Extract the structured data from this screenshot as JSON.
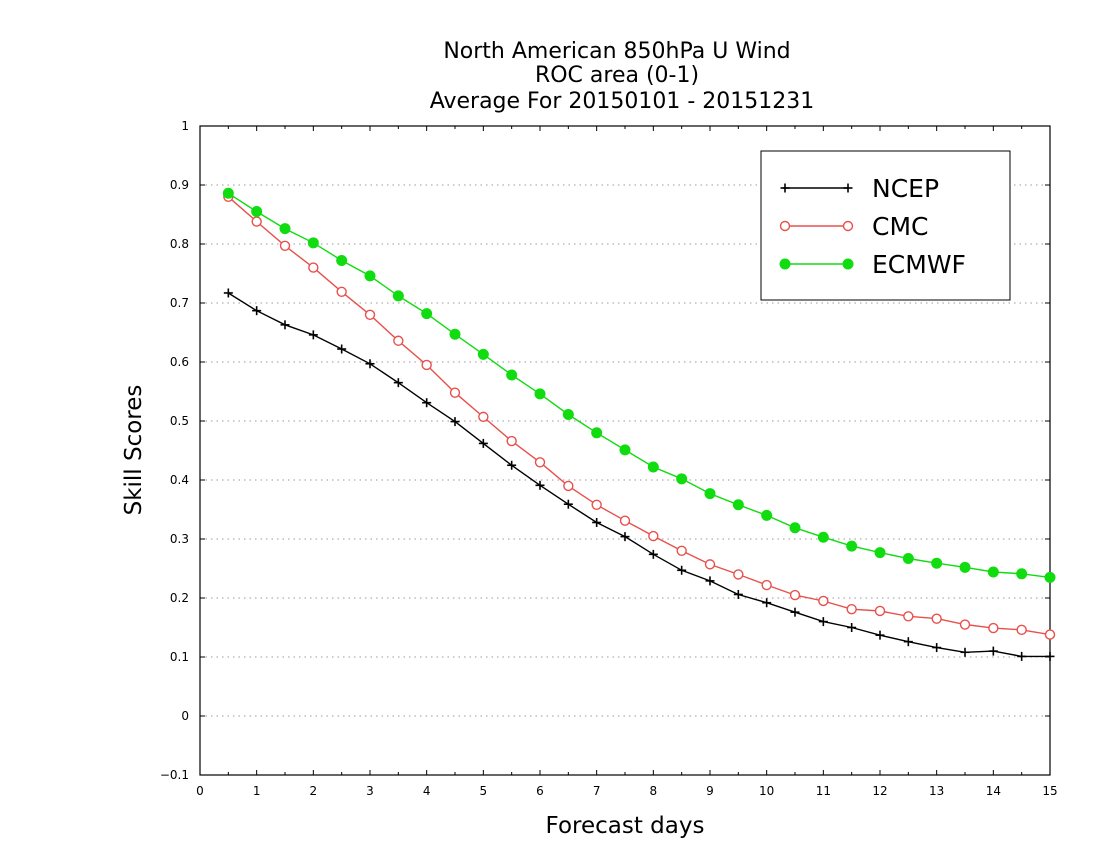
{
  "chart_data": {
    "type": "line",
    "title": [
      "North American 850hPa U Wind",
      "ROC area (0-1)",
      "Average For 20150101 - 20151231"
    ],
    "xlabel": "Forecast days",
    "ylabel": "Skill Scores",
    "xlim": [
      0,
      15
    ],
    "ylim": [
      -0.1,
      1
    ],
    "xticks": [
      "0",
      "1",
      "2",
      "3",
      "4",
      "5",
      "6",
      "7",
      "8",
      "9",
      "10",
      "11",
      "12",
      "13",
      "14",
      "15"
    ],
    "yticks": [
      "−0.1",
      "0",
      "0.1",
      "0.2",
      "0.3",
      "0.4",
      "0.5",
      "0.6",
      "0.7",
      "0.8",
      "0.9",
      "1"
    ],
    "grid": true,
    "legend_position": "top-right",
    "x": [
      0.5,
      1,
      1.5,
      2,
      2.5,
      3,
      3.5,
      4,
      4.5,
      5,
      5.5,
      6,
      6.5,
      7,
      7.5,
      8,
      8.5,
      9,
      9.5,
      10,
      10.5,
      11,
      11.5,
      12,
      12.5,
      13,
      13.5,
      14,
      14.5,
      15
    ],
    "series": [
      {
        "name": "NCEP",
        "color": "#000000",
        "marker": "plus",
        "values": [
          0.717,
          0.687,
          0.663,
          0.646,
          0.622,
          0.597,
          0.565,
          0.531,
          0.499,
          0.462,
          0.425,
          0.391,
          0.359,
          0.328,
          0.304,
          0.274,
          0.247,
          0.229,
          0.206,
          0.192,
          0.176,
          0.16,
          0.15,
          0.137,
          0.126,
          0.116,
          0.108,
          0.11,
          0.101,
          0.101
        ]
      },
      {
        "name": "CMC",
        "color": "#e8504c",
        "marker": "open-circle",
        "values": [
          0.88,
          0.838,
          0.797,
          0.76,
          0.719,
          0.68,
          0.636,
          0.595,
          0.548,
          0.507,
          0.466,
          0.43,
          0.39,
          0.358,
          0.331,
          0.305,
          0.28,
          0.257,
          0.24,
          0.222,
          0.205,
          0.195,
          0.181,
          0.178,
          0.169,
          0.165,
          0.155,
          0.149,
          0.146,
          0.138
        ]
      },
      {
        "name": "ECMWF",
        "color": "#10dc10",
        "marker": "filled-circle",
        "values": [
          0.886,
          0.855,
          0.826,
          0.802,
          0.772,
          0.746,
          0.712,
          0.682,
          0.647,
          0.613,
          0.578,
          0.546,
          0.511,
          0.48,
          0.451,
          0.422,
          0.402,
          0.377,
          0.358,
          0.34,
          0.319,
          0.303,
          0.288,
          0.277,
          0.267,
          0.259,
          0.252,
          0.244,
          0.241,
          0.235
        ]
      }
    ]
  }
}
